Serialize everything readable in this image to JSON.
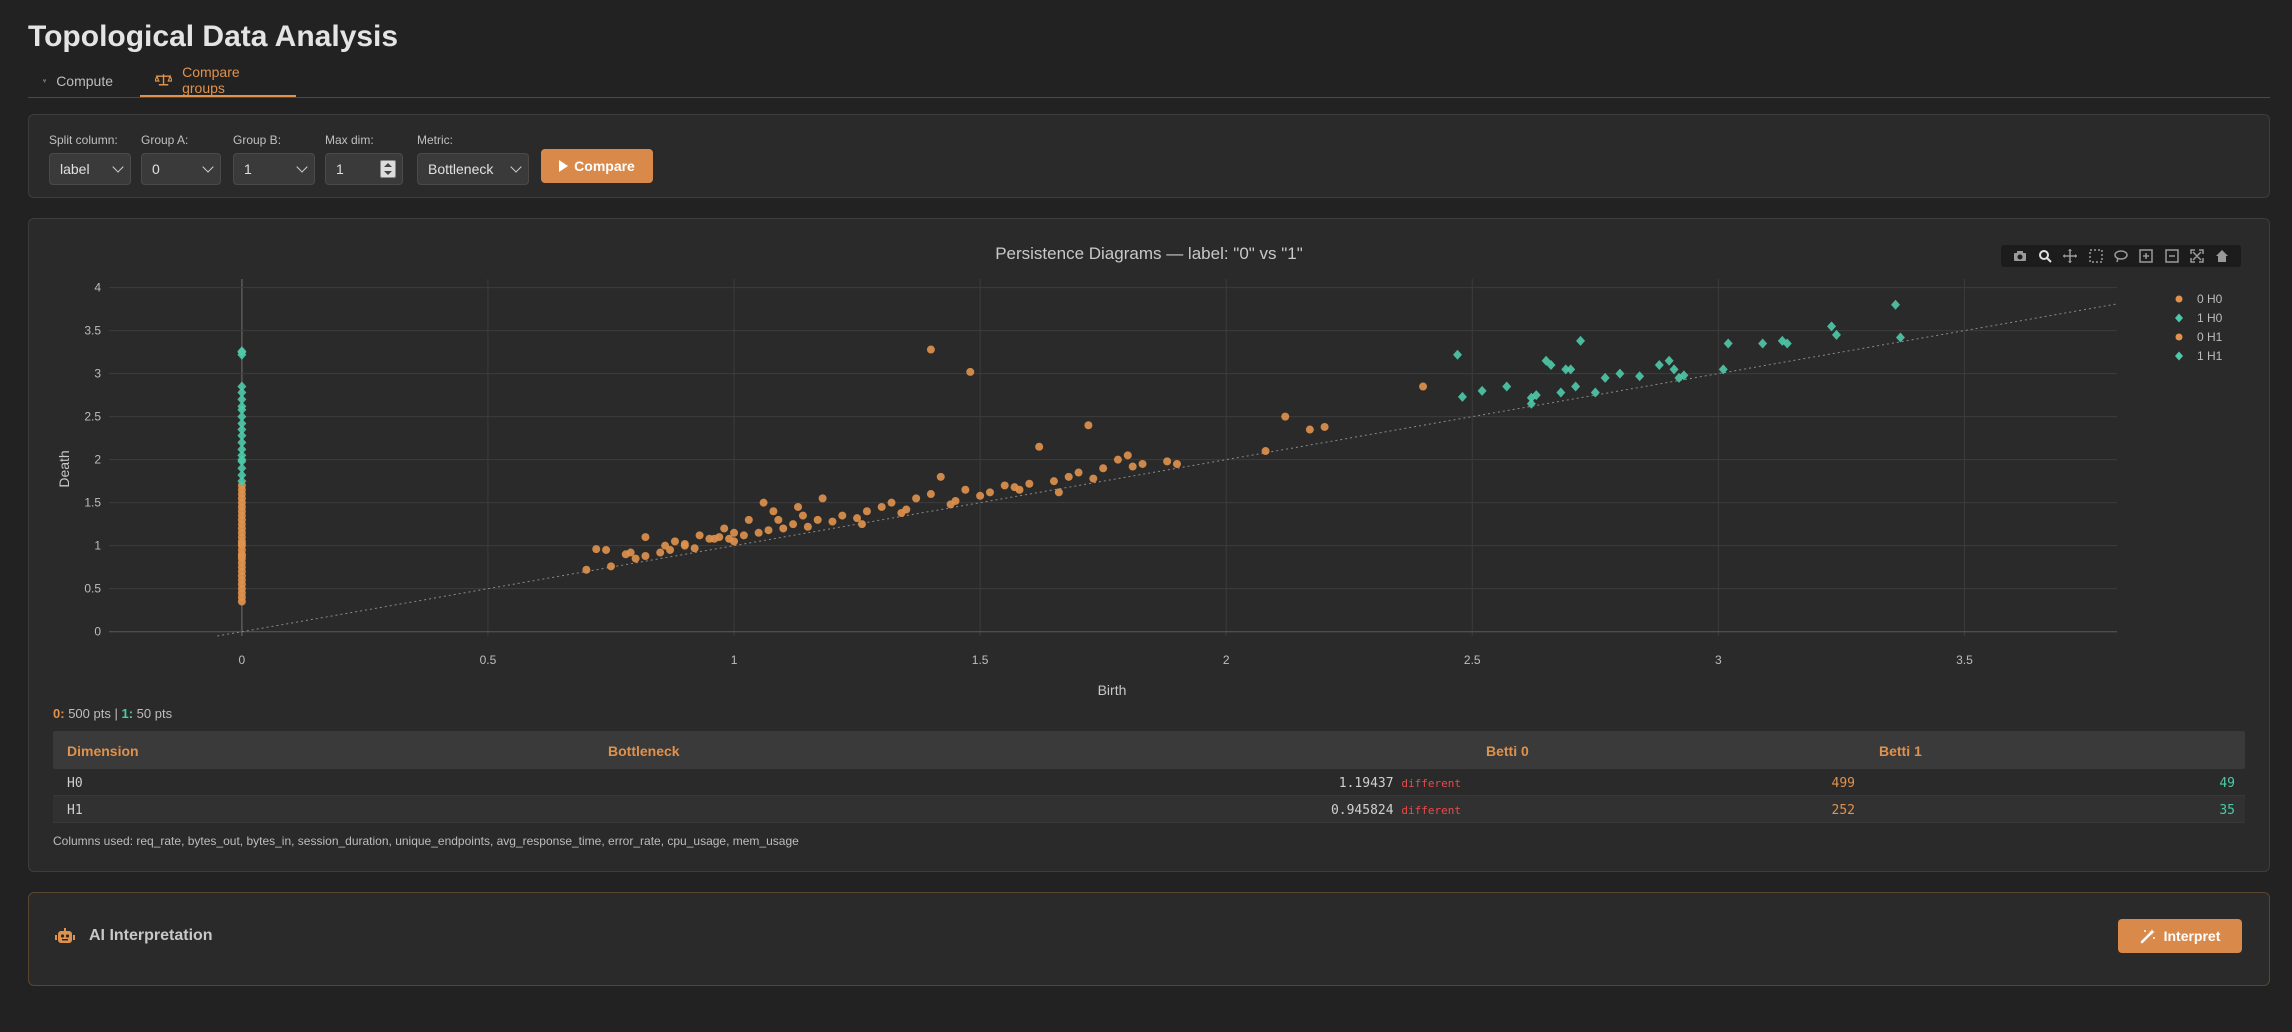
{
  "app": {
    "title": "Topological Data Analysis"
  },
  "tabs": [
    {
      "label": "Compute",
      "icon": "graph-icon"
    },
    {
      "label": "Compare groups",
      "icon": "balance-scale-icon"
    }
  ],
  "controls": {
    "split_column": {
      "label": "Split column:",
      "value": "label"
    },
    "group_a": {
      "label": "Group A:",
      "value": "0"
    },
    "group_b": {
      "label": "Group B:",
      "value": "1"
    },
    "max_dim": {
      "label": "Max dim:",
      "value": "1"
    },
    "metric": {
      "label": "Metric:",
      "value": "Bottleneck"
    },
    "compare_label": "Compare"
  },
  "colors": {
    "accent": "#d9894a",
    "group_a": "#e0924c",
    "group_b": "#4ec9a8",
    "diff": "#e84b4b"
  },
  "chart_data": {
    "type": "scatter",
    "title": "Persistence Diagrams — label: \"0\" vs \"1\"",
    "xlabel": "Birth",
    "ylabel": "Death",
    "xlim": [
      -0.27,
      3.81
    ],
    "ylim": [
      -0.05,
      4.1
    ],
    "x_ticks": [
      "0",
      "0.5",
      "1",
      "1.5",
      "2",
      "2.5",
      "3",
      "3.5"
    ],
    "y_ticks": [
      "0",
      "0.5",
      "1",
      "1.5",
      "2",
      "2.5",
      "3",
      "3.5",
      "4"
    ],
    "grid": true,
    "diagonal": true,
    "legend_position": "top-right",
    "series": [
      {
        "name": "0 H0",
        "marker": "circle",
        "color": "#e0924c",
        "x": [
          0,
          0,
          0,
          0,
          0,
          0,
          0,
          0,
          0,
          0,
          0,
          0,
          0,
          0,
          0,
          0,
          0,
          0,
          0,
          0,
          0,
          0,
          0,
          0,
          0,
          0,
          0,
          0,
          0,
          0
        ],
        "y": [
          0.35,
          0.4,
          0.45,
          0.5,
          0.55,
          0.6,
          0.65,
          0.7,
          0.75,
          0.8,
          0.85,
          0.9,
          0.95,
          1.0,
          1.05,
          1.1,
          1.15,
          1.2,
          1.25,
          1.3,
          1.35,
          1.4,
          1.45,
          1.5,
          1.55,
          1.6,
          1.65,
          1.7,
          1.02,
          0.88
        ]
      },
      {
        "name": "1 H0",
        "marker": "diamond",
        "color": "#4ec9a8",
        "x": [
          0,
          0,
          0,
          0,
          0,
          0,
          0,
          0,
          0,
          0,
          0,
          0,
          0,
          0,
          0,
          0,
          0,
          0,
          0,
          0
        ],
        "y": [
          1.75,
          1.82,
          1.9,
          1.98,
          2.05,
          2.12,
          2.2,
          2.28,
          2.35,
          2.42,
          2.5,
          2.58,
          2.62,
          2.7,
          2.78,
          2.85,
          3.22,
          3.25,
          3.26,
          2.0
        ]
      },
      {
        "name": "0 H1",
        "marker": "circle",
        "color": "#e0924c",
        "x": [
          0.7,
          0.72,
          0.75,
          0.78,
          0.8,
          0.82,
          0.85,
          0.87,
          0.88,
          0.9,
          0.92,
          0.93,
          0.95,
          0.97,
          0.98,
          1.0,
          1.02,
          1.03,
          1.05,
          1.07,
          1.08,
          1.1,
          1.12,
          1.13,
          1.15,
          1.17,
          1.18,
          1.2,
          1.22,
          1.25,
          1.27,
          1.3,
          1.32,
          1.35,
          1.37,
          1.4,
          1.42,
          1.45,
          1.47,
          1.5,
          1.52,
          1.55,
          1.58,
          1.6,
          1.62,
          1.65,
          1.68,
          1.7,
          1.72,
          1.75,
          1.78,
          1.8,
          1.83,
          1.88,
          1.9,
          2.08,
          2.12,
          2.17,
          2.2,
          2.4,
          1.4,
          1.48,
          0.74,
          0.82,
          0.9,
          0.96,
          1.06,
          1.14,
          1.26,
          1.34,
          1.44,
          1.57,
          1.66,
          1.73,
          1.81,
          1.0,
          1.09,
          0.79,
          0.86,
          0.99
        ],
        "y": [
          0.72,
          0.96,
          0.76,
          0.9,
          0.85,
          1.1,
          0.92,
          0.95,
          1.05,
          1.0,
          0.97,
          1.12,
          1.08,
          1.1,
          1.2,
          1.05,
          1.12,
          1.3,
          1.15,
          1.18,
          1.4,
          1.2,
          1.25,
          1.45,
          1.22,
          1.3,
          1.55,
          1.28,
          1.35,
          1.32,
          1.4,
          1.45,
          1.5,
          1.42,
          1.55,
          1.6,
          1.8,
          1.52,
          1.65,
          1.58,
          1.62,
          1.7,
          1.65,
          1.72,
          2.15,
          1.75,
          1.8,
          1.85,
          2.4,
          1.9,
          2.0,
          2.05,
          1.95,
          1.98,
          1.95,
          2.1,
          2.5,
          2.35,
          2.38,
          2.85,
          3.28,
          3.02,
          0.95,
          0.88,
          1.02,
          1.08,
          1.5,
          1.35,
          1.25,
          1.38,
          1.48,
          1.68,
          1.62,
          1.78,
          1.92,
          1.15,
          1.3,
          0.92,
          1.0,
          1.08
        ]
      },
      {
        "name": "1 H1",
        "marker": "diamond",
        "color": "#4ec9a8",
        "x": [
          2.47,
          2.48,
          2.52,
          2.57,
          2.62,
          2.63,
          2.65,
          2.66,
          2.68,
          2.7,
          2.71,
          2.72,
          2.75,
          2.77,
          2.8,
          2.84,
          2.88,
          2.9,
          2.91,
          2.92,
          2.93,
          3.01,
          3.02,
          3.09,
          3.13,
          3.14,
          3.23,
          3.24,
          3.36,
          3.37,
          2.62,
          2.69
        ],
        "y": [
          3.22,
          2.73,
          2.8,
          2.85,
          2.65,
          2.75,
          3.15,
          3.1,
          2.78,
          3.05,
          2.85,
          3.38,
          2.78,
          2.95,
          3.0,
          2.97,
          3.1,
          3.15,
          3.05,
          2.95,
          2.98,
          3.05,
          3.35,
          3.35,
          3.38,
          3.35,
          3.55,
          3.45,
          3.8,
          3.42,
          2.72,
          3.05
        ]
      }
    ]
  },
  "summary": {
    "group_a_label": "0:",
    "group_a_text": "500 pts",
    "sep": "|",
    "group_b_label": "1:",
    "group_b_text": "50 pts"
  },
  "table": {
    "headers": [
      "Dimension",
      "Bottleneck",
      "Betti 0",
      "Betti 1"
    ],
    "rows": [
      {
        "dimension": "H0",
        "value": "1.19437",
        "flag": "different",
        "betti_a": "499",
        "betti_b": "49"
      },
      {
        "dimension": "H1",
        "value": "0.945824",
        "flag": "different",
        "betti_a": "252",
        "betti_b": "35"
      }
    ]
  },
  "columns_used": "Columns used: req_rate, bytes_out, bytes_in, session_duration, unique_endpoints, avg_response_time, error_rate, cpu_usage, mem_usage",
  "ai": {
    "title": "AI Interpretation",
    "button_label": "Interpret",
    "icon": "robot-icon"
  }
}
